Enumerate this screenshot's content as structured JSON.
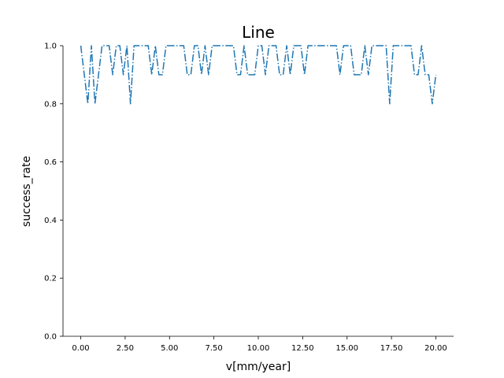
{
  "chart_data": {
    "type": "line",
    "title": "Line",
    "xlabel": "v[mm/year]",
    "ylabel": "success_rate",
    "xlim": [
      -1.0,
      21.0
    ],
    "ylim": [
      0.0,
      1.0
    ],
    "xticks": [
      0.0,
      2.5,
      5.0,
      7.5,
      10.0,
      12.5,
      15.0,
      17.5,
      20.0
    ],
    "xtick_labels": [
      "0.00",
      "2.50",
      "5.00",
      "7.50",
      "10.00",
      "12.50",
      "15.00",
      "17.50",
      "20.00"
    ],
    "yticks": [
      0.0,
      0.2,
      0.4,
      0.6,
      0.8,
      1.0
    ],
    "ytick_labels": [
      "0.0",
      "0.2",
      "0.4",
      "0.6",
      "0.8",
      "1.0"
    ],
    "grid": false,
    "line_style": "dashdot",
    "series": [
      {
        "color": "#1f77b4",
        "x": [
          0.0,
          0.2,
          0.4,
          0.6,
          0.8,
          1.0,
          1.2,
          1.4,
          1.6,
          1.8,
          2.0,
          2.2,
          2.4,
          2.6,
          2.8,
          3.0,
          3.2,
          3.4,
          3.6,
          3.8,
          4.0,
          4.2,
          4.4,
          4.6,
          4.8,
          5.0,
          5.2,
          5.4,
          5.6,
          5.8,
          6.0,
          6.2,
          6.4,
          6.6,
          6.8,
          7.0,
          7.2,
          7.4,
          7.6,
          7.8,
          8.0,
          8.2,
          8.4,
          8.6,
          8.8,
          9.0,
          9.2,
          9.4,
          9.6,
          9.8,
          10.0,
          10.2,
          10.4,
          10.6,
          10.8,
          11.0,
          11.2,
          11.4,
          11.6,
          11.8,
          12.0,
          12.2,
          12.4,
          12.6,
          12.8,
          13.0,
          13.2,
          13.4,
          13.6,
          13.8,
          14.0,
          14.2,
          14.4,
          14.6,
          14.8,
          15.0,
          15.2,
          15.4,
          15.6,
          15.8,
          16.0,
          16.2,
          16.4,
          16.6,
          16.8,
          17.0,
          17.2,
          17.4,
          17.6,
          17.8,
          18.0,
          18.2,
          18.4,
          18.6,
          18.8,
          19.0,
          19.2,
          19.4,
          19.6,
          19.8,
          20.0
        ],
        "y": [
          1.0,
          0.9,
          0.8,
          1.0,
          0.8,
          0.9,
          1.0,
          1.0,
          1.0,
          0.9,
          1.0,
          1.0,
          0.9,
          1.0,
          0.8,
          1.0,
          1.0,
          1.0,
          1.0,
          1.0,
          0.9,
          1.0,
          0.9,
          0.9,
          1.0,
          1.0,
          1.0,
          1.0,
          1.0,
          1.0,
          0.9,
          0.9,
          1.0,
          1.0,
          0.9,
          1.0,
          0.9,
          1.0,
          1.0,
          1.0,
          1.0,
          1.0,
          1.0,
          1.0,
          0.9,
          0.9,
          1.0,
          0.9,
          0.9,
          0.9,
          1.0,
          1.0,
          0.9,
          1.0,
          1.0,
          1.0,
          0.9,
          0.9,
          1.0,
          0.9,
          1.0,
          1.0,
          1.0,
          0.9,
          1.0,
          1.0,
          1.0,
          1.0,
          1.0,
          1.0,
          1.0,
          1.0,
          1.0,
          0.9,
          1.0,
          1.0,
          1.0,
          0.9,
          0.9,
          0.9,
          1.0,
          0.9,
          1.0,
          1.0,
          1.0,
          1.0,
          1.0,
          0.8,
          1.0,
          1.0,
          1.0,
          1.0,
          1.0,
          1.0,
          0.9,
          0.9,
          1.0,
          0.9,
          0.9,
          0.8,
          0.9
        ]
      }
    ]
  }
}
